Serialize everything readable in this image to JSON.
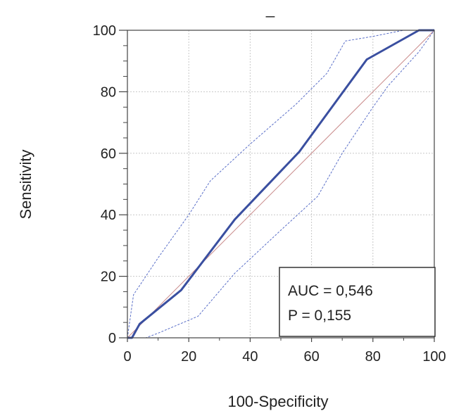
{
  "chart_data": {
    "type": "line",
    "title": "_",
    "xlabel": "100-Specificity",
    "ylabel": "Sensitivity",
    "xlim": [
      0,
      100
    ],
    "ylim": [
      0,
      100
    ],
    "x_ticks": [
      "0",
      "20",
      "40",
      "60",
      "80",
      "100"
    ],
    "y_ticks": [
      "0",
      "20",
      "40",
      "60",
      "80",
      "100"
    ],
    "grid": true,
    "series": [
      {
        "role": "roc_curve",
        "color": "#3a4fa0",
        "x": [
          0,
          1.5,
          4,
          17.5,
          35,
          56,
          78,
          95,
          100
        ],
        "y": [
          0,
          0,
          4.5,
          15.5,
          38.5,
          60.5,
          90.5,
          100,
          100
        ]
      },
      {
        "role": "ci_upper",
        "color": "#5a6fc8",
        "x": [
          0,
          2,
          10,
          20,
          27,
          40,
          55,
          65,
          71,
          80,
          90,
          100
        ],
        "y": [
          0,
          14,
          26,
          40,
          51,
          63,
          76,
          86,
          96.5,
          98,
          100,
          100
        ]
      },
      {
        "role": "ci_lower",
        "color": "#5a6fc8",
        "x": [
          0,
          6,
          10,
          23,
          35,
          50,
          62,
          70,
          80,
          85,
          95,
          100
        ],
        "y": [
          0,
          0,
          1.5,
          7,
          21,
          35,
          46,
          60,
          75,
          82,
          93,
          100
        ]
      },
      {
        "role": "reference_diagonal",
        "color": "#c98a8a",
        "x": [
          0,
          100
        ],
        "y": [
          0,
          100
        ]
      }
    ],
    "annotation": {
      "auc": "AUC = 0,546",
      "p": "P = 0,155"
    }
  }
}
